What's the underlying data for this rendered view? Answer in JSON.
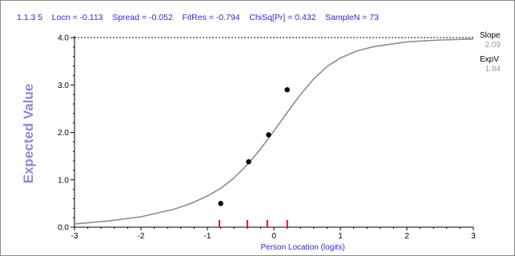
{
  "header": {
    "item_id": "1.1.3 5",
    "locn": "Locn = -0.113",
    "spread": "Spread = -0.052",
    "fitres": "FitRes = -0.794",
    "chisq": "ChiSq[Pr] = 0.432",
    "samplen": "SampleN = 73"
  },
  "side_panel": {
    "slope_label": "Slope",
    "slope_value": "2.09",
    "expv_label": "ExpV",
    "expv_value": "1.84"
  },
  "colors": {
    "header_text": "#2b2bd6",
    "curve": "#8c8c8c",
    "points": "#000000",
    "threshold_ticks": "#e01010",
    "y_title": "#8a8ad8"
  },
  "chart_data": {
    "type": "line",
    "xlabel": "Person Location (logits)",
    "ylabel": "Expected Value",
    "xlim": [
      -3,
      3
    ],
    "ylim": [
      0,
      4
    ],
    "x_ticks": [
      -3,
      -2,
      -1,
      0,
      1,
      2,
      3
    ],
    "x_tick_labels": [
      "-3",
      "-2",
      "-1",
      "0",
      "1",
      "2",
      "3"
    ],
    "y_ticks": [
      0,
      1,
      2,
      3,
      4
    ],
    "y_tick_labels": [
      "0.0",
      "1.0",
      "2.0",
      "3.0",
      "4.0"
    ],
    "max_line": 4.0,
    "curve": {
      "x": [
        -3.0,
        -2.5,
        -2.0,
        -1.5,
        -1.25,
        -1.0,
        -0.8,
        -0.6,
        -0.4,
        -0.2,
        0.0,
        0.2,
        0.4,
        0.6,
        0.8,
        1.0,
        1.25,
        1.5,
        2.0,
        2.5,
        3.0
      ],
      "y": [
        0.07,
        0.13,
        0.22,
        0.38,
        0.5,
        0.66,
        0.82,
        1.04,
        1.32,
        1.65,
        2.03,
        2.42,
        2.8,
        3.13,
        3.39,
        3.57,
        3.72,
        3.81,
        3.91,
        3.95,
        3.97
      ]
    },
    "observed_points": {
      "x": [
        -0.8,
        -0.38,
        -0.08,
        0.2
      ],
      "y": [
        0.5,
        1.38,
        1.95,
        2.9
      ]
    },
    "threshold_ticks_x": [
      -0.82,
      -0.4,
      -0.1,
      0.2
    ],
    "grid": false
  }
}
